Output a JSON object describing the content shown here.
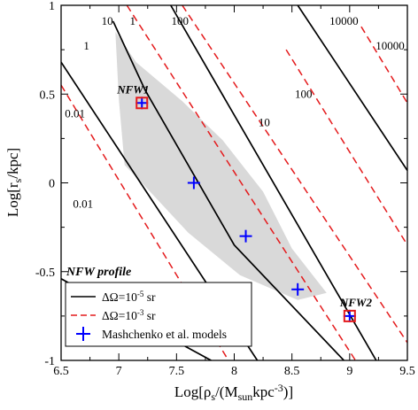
{
  "chart_data": {
    "type": "line",
    "xlabel_parts": {
      "pre": "Log[ρ",
      "sub1": "s",
      "mid": "/(M",
      "sub2": "sun",
      "mid2": "kpc",
      "sup": "-3",
      "post": ")]"
    },
    "ylabel_parts": {
      "pre": "Log[r",
      "sub": "s",
      "post": "/kpc]"
    },
    "xlim": [
      6.5,
      9.5
    ],
    "ylim": [
      -1,
      1
    ],
    "xticks": [
      "6.5",
      "7",
      "7.5",
      "8",
      "8.5",
      "9",
      "9.5"
    ],
    "yticks": [
      "-1",
      "-0.5",
      "0",
      "0.5",
      "1"
    ],
    "xtick_values": [
      6.5,
      7,
      7.5,
      8,
      8.5,
      9,
      9.5
    ],
    "ytick_values": [
      -1,
      -0.5,
      0,
      0.5,
      1
    ],
    "annotation_profile": "NFW profile",
    "shaded_region": [
      [
        6.97,
        0.85
      ],
      [
        7.15,
        0.68
      ],
      [
        7.55,
        0.46
      ],
      [
        7.9,
        0.24
      ],
      [
        8.25,
        -0.05
      ],
      [
        8.5,
        -0.37
      ],
      [
        8.8,
        -0.62
      ],
      [
        8.55,
        -0.66
      ],
      [
        8.05,
        -0.52
      ],
      [
        7.6,
        -0.28
      ],
      [
        7.2,
        0.0
      ],
      [
        7.05,
        0.1
      ],
      [
        7.0,
        0.47
      ]
    ],
    "series": [
      {
        "name": "ΔΩ=10⁻⁵ sr",
        "style": "solid",
        "color": "#000000",
        "lines": [
          {
            "label": "0.01",
            "points": [
              [
                6.5,
                -0.54
              ],
              [
                7.8,
                -1.0
              ]
            ]
          },
          {
            "label": "1",
            "points": [
              [
                6.5,
                0.68
              ],
              [
                8.2,
                -1.0
              ]
            ]
          },
          {
            "label": "10",
            "points": [
              [
                6.95,
                0.91
              ],
              [
                7.23,
                0.52
              ],
              [
                8.0,
                -0.35
              ],
              [
                8.95,
                -1.0
              ]
            ]
          },
          {
            "label": "100",
            "points": [
              [
                7.45,
                1.0
              ],
              [
                9.23,
                -1.0
              ]
            ]
          },
          {
            "label": "10000",
            "points": [
              [
                8.55,
                1.0
              ],
              [
                9.5,
                0.07
              ]
            ]
          }
        ]
      },
      {
        "name": "ΔΩ=10⁻³ sr",
        "style": "dashed",
        "color": "#e41a1c",
        "lines": [
          {
            "label": "0.01",
            "points": [
              [
                6.5,
                0.55
              ],
              [
                7.95,
                -1.0
              ]
            ]
          },
          {
            "label": "1",
            "points": [
              [
                7.07,
                1.0
              ],
              [
                9.05,
                -1.0
              ]
            ]
          },
          {
            "label": "10",
            "points": [
              [
                7.55,
                1.0
              ],
              [
                9.5,
                -0.9
              ]
            ]
          },
          {
            "label": "100",
            "points": [
              [
                8.45,
                0.75
              ],
              [
                9.5,
                -0.35
              ]
            ]
          },
          {
            "label": "10000",
            "points": [
              [
                9.1,
                0.88
              ],
              [
                9.5,
                0.45
              ]
            ]
          }
        ]
      },
      {
        "name": "Mashchenko et al. models",
        "style": "marker",
        "color": "#0000ff",
        "points": [
          [
            7.2,
            0.45
          ],
          [
            7.65,
            0.0
          ],
          [
            8.1,
            -0.3
          ],
          [
            8.55,
            -0.6
          ],
          [
            9.0,
            -0.75
          ]
        ]
      }
    ],
    "highlighted_models": [
      {
        "label": "NFW1",
        "x": 7.2,
        "y": 0.45
      },
      {
        "label": "NFW2",
        "x": 9.0,
        "y": -0.75
      }
    ],
    "curve_labels": [
      {
        "text": "10",
        "x": 6.9,
        "y": 0.91
      },
      {
        "text": "1",
        "x": 7.12,
        "y": 0.91
      },
      {
        "text": "100",
        "x": 7.53,
        "y": 0.91
      },
      {
        "text": "10000",
        "x": 8.95,
        "y": 0.91
      },
      {
        "text": "10000",
        "x": 9.35,
        "y": 0.77
      },
      {
        "text": "1",
        "x": 6.72,
        "y": 0.77
      },
      {
        "text": "100",
        "x": 8.6,
        "y": 0.5
      },
      {
        "text": "0.01",
        "x": 6.62,
        "y": 0.39
      },
      {
        "text": "10",
        "x": 8.26,
        "y": 0.34
      },
      {
        "text": "0.01",
        "x": 6.69,
        "y": -0.12
      }
    ],
    "legend": {
      "position": "bottom-left",
      "entries": [
        {
          "text": "ΔΩ=10",
          "sup": "-5",
          "unit": " sr",
          "style": "solid"
        },
        {
          "text": "ΔΩ=10",
          "sup": "-3",
          "unit": " sr",
          "style": "dashed"
        },
        {
          "text": "Mashchenko et al. models",
          "sup": "",
          "unit": "",
          "style": "marker"
        }
      ]
    },
    "colors": {
      "solid": "#000000",
      "dashed": "#e41a1c",
      "marker": "#0000ff",
      "shade": "#d9d9d9",
      "highlight": "#e41a1c"
    }
  }
}
